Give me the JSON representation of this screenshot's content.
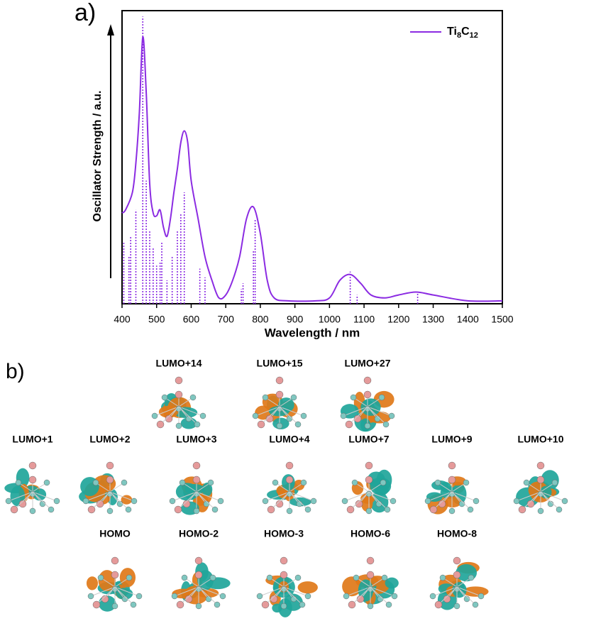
{
  "chart_data": {
    "type": "line",
    "panel_label": "a)",
    "x_label": "Wavelength / nm",
    "y_label": "Oscillator Strength / a.u.",
    "xlim": [
      400,
      1500
    ],
    "xticks": [
      400,
      500,
      600,
      700,
      800,
      900,
      1000,
      1100,
      1200,
      1300,
      1400,
      1500
    ],
    "ylim": [
      0,
      1
    ],
    "legend": "upper right",
    "series": [
      {
        "name": "Ti8C12",
        "color": "#8b2be2",
        "x": [
          400,
          410,
          430,
          440,
          450,
          460,
          470,
          480,
          490,
          500,
          510,
          520,
          530,
          540,
          550,
          560,
          570,
          580,
          590,
          600,
          620,
          640,
          660,
          680,
          700,
          720,
          740,
          760,
          780,
          800,
          820,
          840,
          880,
          960,
          1000,
          1030,
          1060,
          1090,
          1120,
          1160,
          1200,
          1250,
          1300,
          1400,
          1500
        ],
        "values": [
          0.31,
          0.32,
          0.38,
          0.48,
          0.65,
          0.91,
          0.72,
          0.41,
          0.31,
          0.3,
          0.32,
          0.26,
          0.23,
          0.29,
          0.38,
          0.46,
          0.55,
          0.59,
          0.55,
          0.42,
          0.29,
          0.16,
          0.08,
          0.02,
          0.03,
          0.08,
          0.16,
          0.29,
          0.33,
          0.24,
          0.08,
          0.02,
          0.01,
          0.01,
          0.02,
          0.08,
          0.1,
          0.07,
          0.03,
          0.02,
          0.03,
          0.04,
          0.03,
          0.01,
          0.01
        ]
      }
    ],
    "sticks": {
      "x": [
        405,
        420,
        425,
        440,
        460,
        470,
        480,
        490,
        500,
        510,
        515,
        530,
        545,
        560,
        570,
        580,
        625,
        640,
        745,
        750,
        780,
        785,
        1060,
        1080,
        1255
      ],
      "values": [
        0.21,
        0.16,
        0.23,
        0.32,
        0.98,
        0.42,
        0.25,
        0.19,
        0.13,
        0.14,
        0.21,
        0.08,
        0.16,
        0.25,
        0.31,
        0.38,
        0.12,
        0.09,
        0.05,
        0.07,
        0.18,
        0.29,
        0.11,
        0.03,
        0.04
      ]
    }
  },
  "orbitals": {
    "panel_label": "b)",
    "rows": [
      [
        "LUMO+14",
        "LUMO+15",
        "LUMO+27"
      ],
      [
        "LUMO+1",
        "LUMO+2",
        "LUMO+3",
        "LUMO+4",
        "LUMO+7",
        "LUMO+9",
        "LUMO+10"
      ],
      [
        "HOMO",
        "HOMO-2",
        "HOMO-3",
        "HOMO-6",
        "HOMO-8"
      ]
    ]
  }
}
